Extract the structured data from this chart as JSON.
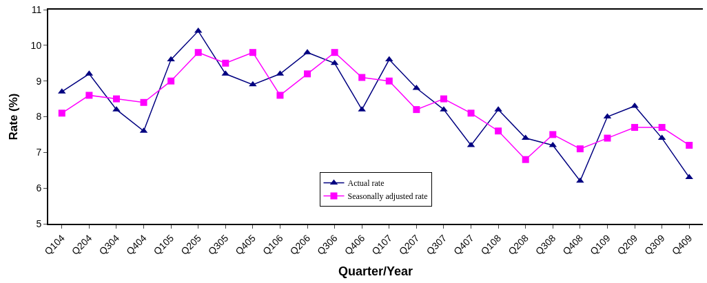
{
  "chart_data": {
    "type": "line",
    "xlabel": "Quarter/Year",
    "ylabel": "Rate (%)",
    "categories": [
      "Q104",
      "Q204",
      "Q304",
      "Q404",
      "Q105",
      "Q205",
      "Q305",
      "Q405",
      "Q106",
      "Q206",
      "Q306",
      "Q406",
      "Q107",
      "Q207",
      "Q307",
      "Q407",
      "Q108",
      "Q208",
      "Q308",
      "Q408",
      "Q109",
      "Q209",
      "Q309",
      "Q409"
    ],
    "series": [
      {
        "name": "Actual rate",
        "color": "#000080",
        "marker": "triangle",
        "values": [
          8.7,
          9.2,
          8.2,
          7.6,
          9.6,
          10.4,
          9.2,
          8.9,
          9.2,
          9.8,
          9.5,
          8.2,
          9.6,
          8.8,
          8.2,
          7.2,
          8.2,
          7.4,
          7.2,
          6.2,
          8.0,
          8.3,
          7.4,
          6.3
        ]
      },
      {
        "name": "Seasonally adjusted rate",
        "color": "#ff00ff",
        "marker": "square",
        "values": [
          8.1,
          8.6,
          8.5,
          8.4,
          9.0,
          9.8,
          9.5,
          9.8,
          8.6,
          9.2,
          9.8,
          9.1,
          9.0,
          8.2,
          8.5,
          8.1,
          7.6,
          6.8,
          7.5,
          7.1,
          7.4,
          7.7,
          7.7,
          7.2
        ]
      }
    ],
    "ylim": [
      5,
      11
    ],
    "yticks": [
      5,
      6,
      7,
      8,
      9,
      10,
      11
    ],
    "legend": "bottom"
  }
}
